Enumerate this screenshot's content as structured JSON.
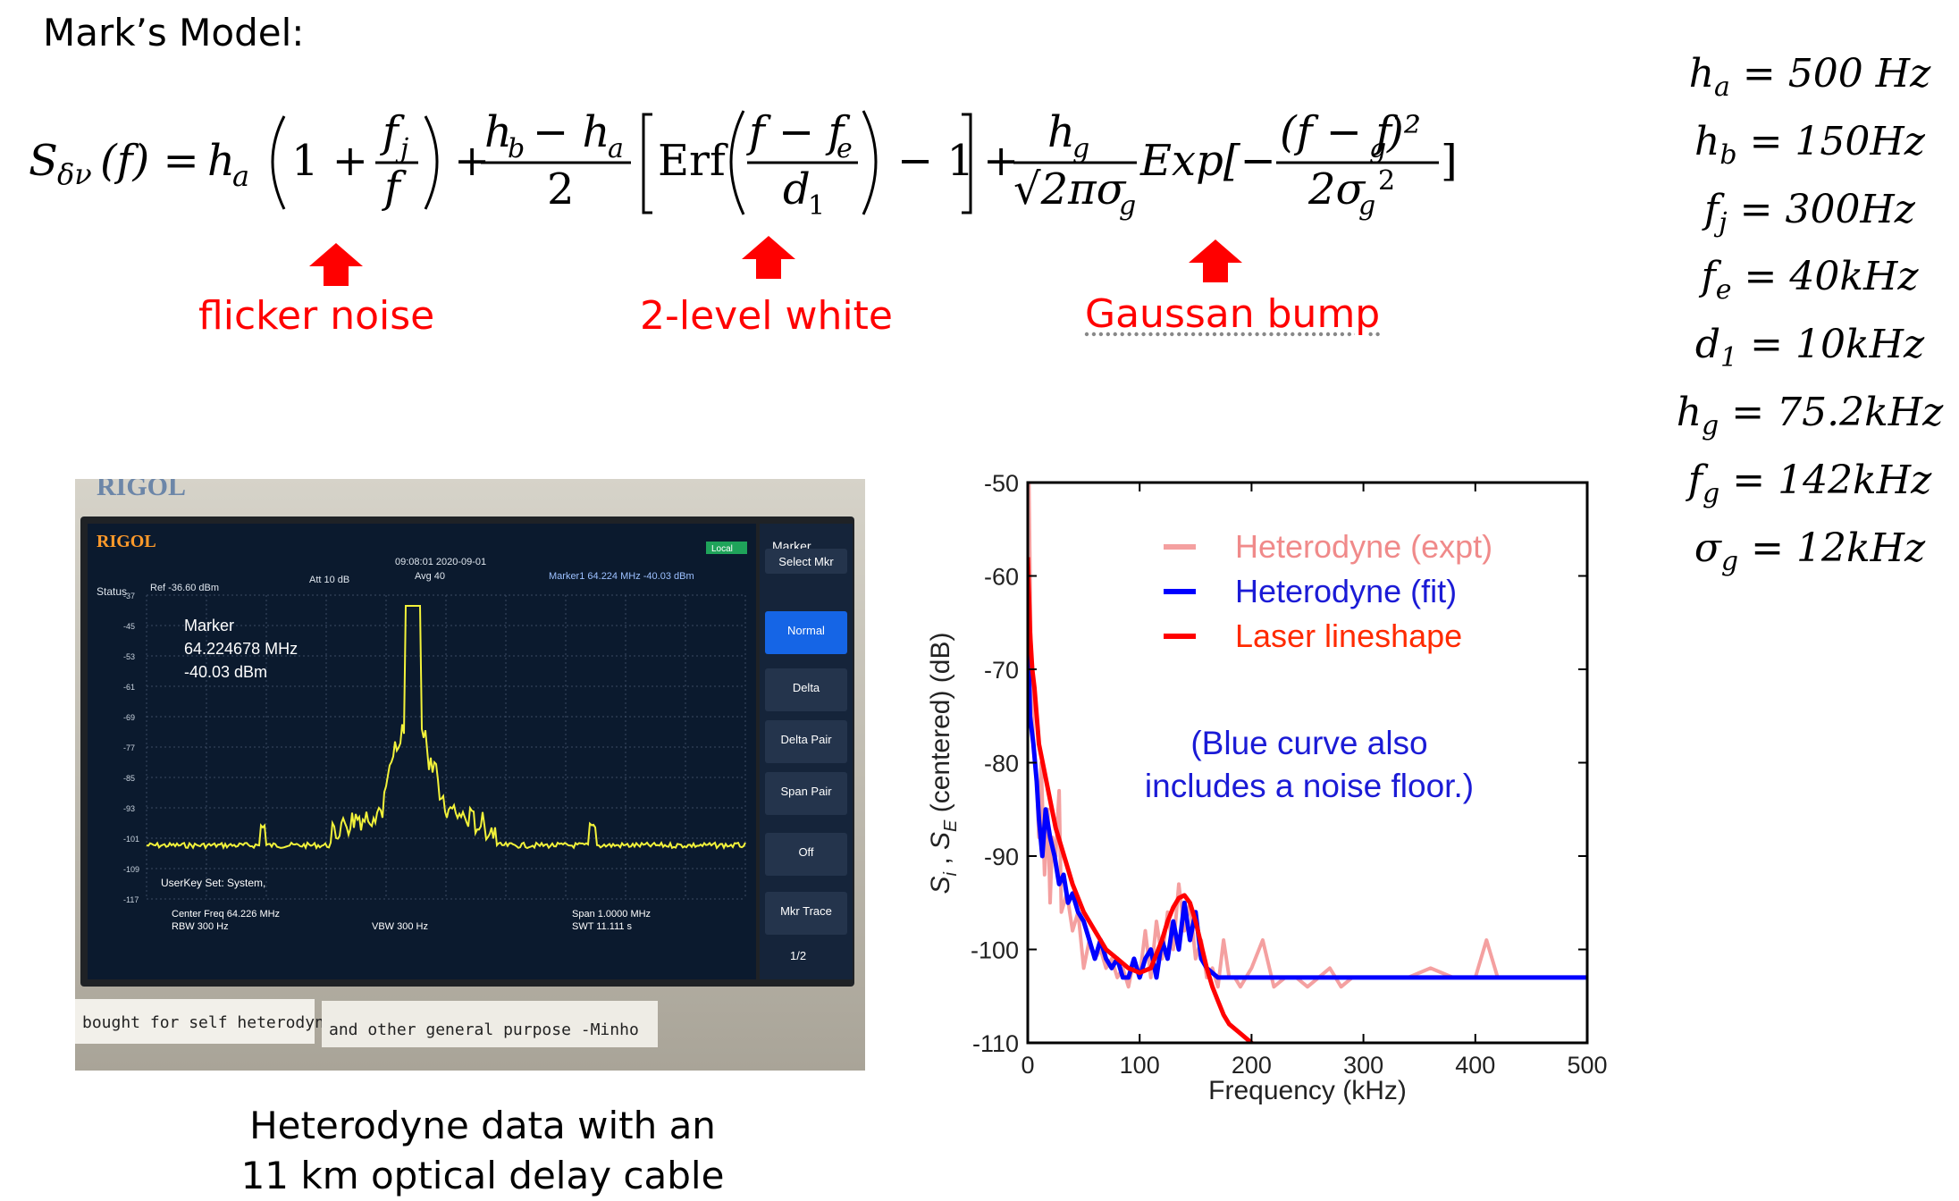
{
  "title": "Mark’s Model:",
  "formula": {
    "lhs": "S",
    "lhs_sub": "δν",
    "lhs_arg": "(f) =",
    "term1": "h",
    "term1_sub": "a",
    "one": "1 +",
    "fj": "f",
    "fj_sub": "j",
    "f": "f",
    "plus": "+",
    "num2": "h",
    "num2_sub": "b",
    "num2_mid": "− h",
    "num2_sub2": "a",
    "den2": "2",
    "erf": "Erf",
    "f_minus": "f − f",
    "fe_sub": "e",
    "d1": "d",
    "d1_sub": "1",
    "minus_one": "− 1",
    "hg": "h",
    "hg_sub": "g",
    "sqrt": "√2πσ",
    "sqrt_sub": "g",
    "exp": "Exp[−",
    "num4": "(f − f",
    "num4_sub": "g",
    "num4_end": ")²",
    "den4": "2σ",
    "den4_sub": "g",
    "den4_sup": "2",
    "close": "]"
  },
  "annotations": {
    "flicker": "flicker noise",
    "white": "2-level white",
    "gauss": "Gaussan bump"
  },
  "params": [
    {
      "sym": "h",
      "sub": "a",
      "val": " = 500 Hz"
    },
    {
      "sym": "h",
      "sub": "b",
      "val": " = 150Hz"
    },
    {
      "sym": "f",
      "sub": "j",
      "val": " = 300Hz"
    },
    {
      "sym": "f",
      "sub": "e",
      "val": " = 40kHz"
    },
    {
      "sym": "d",
      "sub": "1",
      "val": " = 10kHz"
    },
    {
      "sym": "h",
      "sub": "g",
      "val": " = 75.2kHz"
    },
    {
      "sym": "f",
      "sub": "g",
      "val": " = 142kHz"
    },
    {
      "sym": "σ",
      "sub": "g",
      "val": " = 12kHz"
    }
  ],
  "instrument": {
    "brand": "RIGOL",
    "time": "09:08:01 2020-09-01",
    "avg": "Avg 40",
    "local": "Local",
    "marker_head": "Marker",
    "status": "Status",
    "ref": "Ref -36.60 dBm",
    "att": "Att 10 dB",
    "marker1": "Marker1 64.224 MHz -40.03 dBm",
    "marker_label": "Marker",
    "marker_freq": "64.224678 MHz",
    "marker_dbm": "-40.03 dBm",
    "userkey": "UserKey Set: System,",
    "center": "Center Freq 64.226 MHz",
    "rbw": "RBW 300 Hz",
    "vbw": "VBW 300 Hz",
    "span": "Span 1.0000 MHz",
    "swt": "SWT 11.111 s",
    "menu": [
      "Select Mkr",
      "Normal",
      "Delta",
      "Delta Pair",
      "Span Pair",
      "Off",
      "Mkr Trace"
    ],
    "page": "1/2",
    "yticks": [
      "-37",
      "-45",
      "-53",
      "-61",
      "-69",
      "-77",
      "-85",
      "-93",
      "-101",
      "-109",
      "-117"
    ],
    "sticker1": "bought for self heterodyne",
    "sticker2": "and other general purpose -Minho"
  },
  "caption_l1": "Heterodyne data with an",
  "caption_l2": "11 km optical delay cable",
  "chart_data": {
    "type": "line",
    "xlabel": "Frequency (kHz)",
    "ylabel": "S_i , S_E (centered) (dB)",
    "xlim": [
      0,
      500
    ],
    "ylim": [
      -110,
      -50
    ],
    "xticks": [
      0,
      100,
      200,
      300,
      400,
      500
    ],
    "yticks": [
      -50,
      -60,
      -70,
      -80,
      -90,
      -100,
      -110
    ],
    "legend_position": "top-right",
    "annotation_l1": "(Blue curve also",
    "annotation_l2": "includes a noise floor.)",
    "series": [
      {
        "name": "Heterodyne (expt)",
        "color": "#f4a0a0",
        "x": [
          1,
          3,
          5,
          8,
          10,
          12,
          15,
          18,
          20,
          22,
          25,
          28,
          30,
          35,
          40,
          45,
          50,
          55,
          60,
          65,
          70,
          75,
          80,
          85,
          90,
          95,
          100,
          105,
          110,
          115,
          120,
          125,
          130,
          135,
          140,
          145,
          150,
          155,
          160,
          165,
          170,
          175,
          180,
          185,
          190,
          195,
          200,
          210,
          220,
          230,
          240,
          250,
          260,
          270,
          280,
          290,
          300,
          320,
          340,
          360,
          380,
          400,
          410,
          420,
          440,
          460,
          480,
          500
        ],
        "y": [
          -50,
          -70,
          -78,
          -82,
          -88,
          -80,
          -92,
          -85,
          -95,
          -88,
          -90,
          -83,
          -96,
          -94,
          -98,
          -96,
          -102,
          -99,
          -101,
          -100,
          -102,
          -101,
          -103,
          -102,
          -104,
          -101,
          -103,
          -98,
          -103,
          -97,
          -101,
          -96,
          -100,
          -93,
          -98,
          -95,
          -101,
          -99,
          -103,
          -102,
          -104,
          -99,
          -103,
          -103,
          -104,
          -103,
          -102,
          -99,
          -104,
          -103,
          -103,
          -104,
          -103,
          -102,
          -104,
          -103,
          -103,
          -103,
          -103,
          -102,
          -103,
          -103,
          -99,
          -103,
          -103,
          -103,
          -103,
          -103
        ]
      },
      {
        "name": "Heterodyne (fit)",
        "color": "#0000ff",
        "x": [
          0,
          2,
          5,
          8,
          10,
          13,
          16,
          20,
          24,
          28,
          32,
          36,
          40,
          45,
          50,
          55,
          60,
          65,
          70,
          75,
          80,
          85,
          90,
          95,
          100,
          105,
          110,
          115,
          120,
          125,
          130,
          135,
          140,
          145,
          150,
          155,
          160,
          170,
          180,
          190,
          200,
          220,
          250,
          300,
          350,
          400,
          450,
          500
        ],
        "y": [
          -64,
          -75,
          -78,
          -82,
          -86,
          -90,
          -85,
          -88,
          -90,
          -93,
          -92,
          -95,
          -94,
          -96,
          -97,
          -99,
          -101,
          -99,
          -101,
          -102,
          -101,
          -103,
          -103,
          -101,
          -103,
          -101,
          -100,
          -103,
          -99,
          -101,
          -97,
          -100,
          -95,
          -99,
          -96,
          -101,
          -102,
          -103,
          -103,
          -103,
          -103,
          -103,
          -103,
          -103,
          -103,
          -103,
          -103,
          -103
        ]
      },
      {
        "name": "Laser lineshape",
        "color": "#ff0000",
        "x": [
          0,
          1,
          2,
          4,
          6,
          8,
          10,
          15,
          20,
          25,
          30,
          40,
          50,
          60,
          70,
          80,
          90,
          100,
          110,
          120,
          125,
          130,
          135,
          140,
          145,
          150,
          155,
          160,
          165,
          170,
          175,
          180,
          190,
          200,
          210,
          222
        ],
        "y": [
          -58,
          -62,
          -66,
          -70,
          -72,
          -75,
          -78,
          -81,
          -84,
          -87,
          -89,
          -93,
          -96,
          -98,
          -100,
          -101,
          -102,
          -102.5,
          -102,
          -99,
          -97,
          -95.5,
          -94.5,
          -94.2,
          -95,
          -97,
          -99.5,
          -102,
          -104,
          -105.5,
          -107,
          -108,
          -109,
          -110,
          -111,
          -111.5
        ]
      }
    ]
  }
}
